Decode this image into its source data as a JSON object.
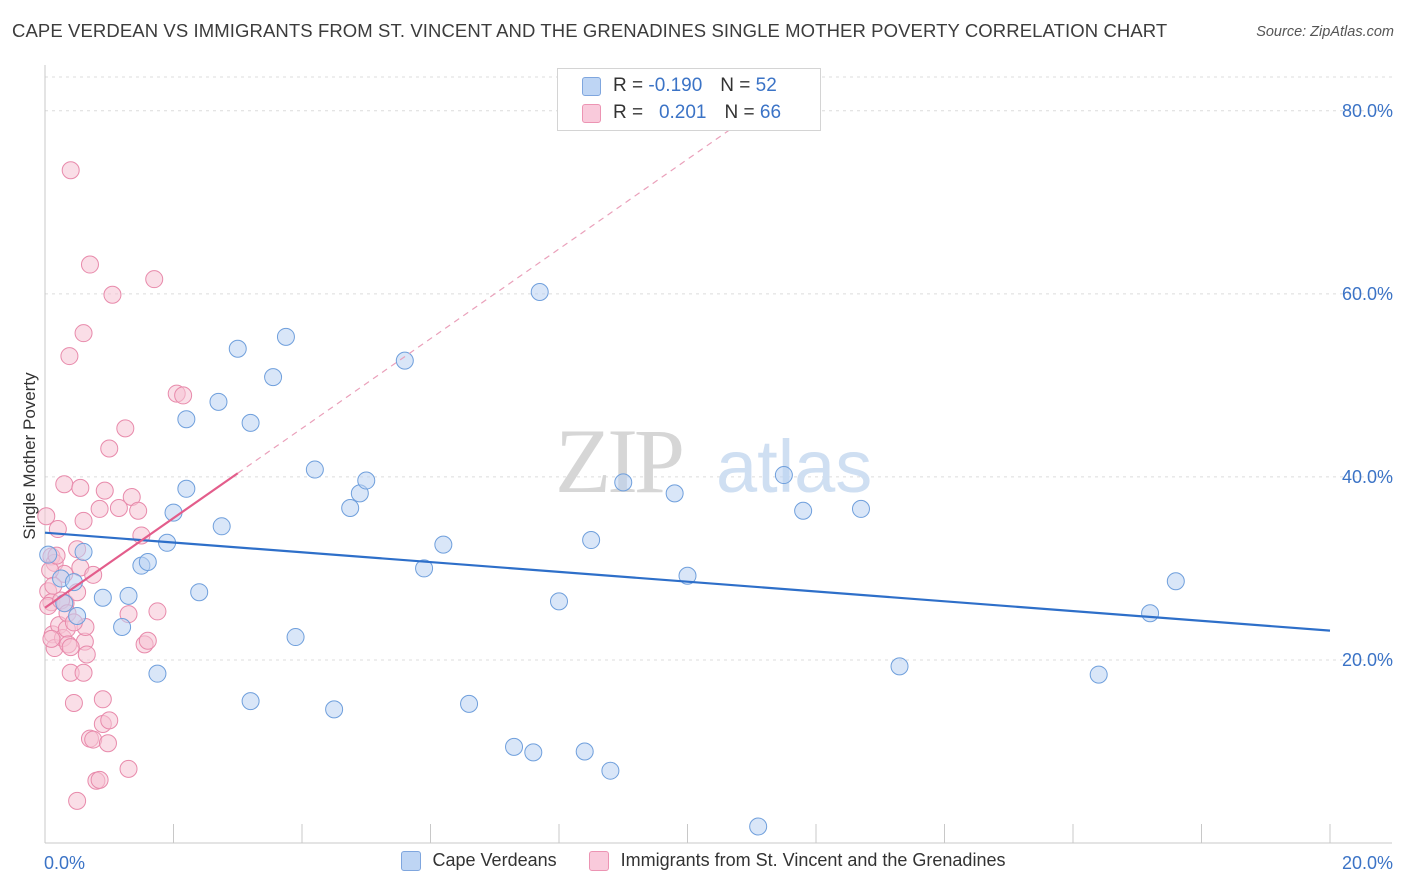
{
  "title": "CAPE VERDEAN VS IMMIGRANTS FROM ST. VINCENT AND THE GRENADINES SINGLE MOTHER POVERTY CORRELATION CHART",
  "source": "Source: ZipAtlas.com",
  "watermark": {
    "zip": "ZIP",
    "atlas": "atlas"
  },
  "legend_top": [
    {
      "r_label": "R =",
      "r_value": "-0.190",
      "n_label": "N =",
      "n_value": "52",
      "color": "#a9c7ef"
    },
    {
      "r_label": "R =",
      "r_value": "0.201",
      "n_label": "N =",
      "n_value": "66",
      "color": "#f6b7cc"
    }
  ],
  "chart_data": {
    "type": "scatter",
    "title": "CAPE VERDEAN VS IMMIGRANTS FROM ST. VINCENT AND THE GRENADINES SINGLE MOTHER POVERTY CORRELATION CHART",
    "xlabel": "",
    "ylabel": "Single Mother Poverty",
    "xlim": [
      0,
      20
    ],
    "ylim": [
      0,
      85
    ],
    "x_tick_labels": [
      {
        "value": 0,
        "label": "0.0%"
      },
      {
        "value": 20,
        "label": "20.0%"
      }
    ],
    "y_tick_labels": [
      {
        "value": 20,
        "label": "20.0%"
      },
      {
        "value": 40,
        "label": "40.0%"
      },
      {
        "value": 60,
        "label": "60.0%"
      },
      {
        "value": 80,
        "label": "80.0%"
      }
    ],
    "x_minor_ticks": [
      0,
      2,
      4,
      6,
      8,
      10,
      12,
      14,
      16,
      18,
      20
    ],
    "grid": "horizontal-dashed",
    "legend_position": "bottom",
    "series": [
      {
        "name": "Cape Verdeans",
        "color": "#a9c7ef",
        "line_color": "#2e6fc9",
        "trend": {
          "x": [
            0,
            20
          ],
          "y": [
            33.9,
            23.2
          ]
        },
        "points": [
          [
            0.05,
            31.5
          ],
          [
            0.25,
            28.9
          ],
          [
            0.3,
            26.2
          ],
          [
            0.45,
            28.5
          ],
          [
            0.6,
            31.8
          ],
          [
            0.5,
            24.8
          ],
          [
            0.9,
            26.8
          ],
          [
            1.3,
            27.0
          ],
          [
            1.2,
            23.6
          ],
          [
            1.5,
            30.3
          ],
          [
            1.6,
            30.7
          ],
          [
            1.75,
            18.5
          ],
          [
            1.9,
            32.8
          ],
          [
            2.0,
            36.1
          ],
          [
            2.2,
            38.7
          ],
          [
            2.2,
            46.3
          ],
          [
            2.4,
            27.4
          ],
          [
            2.7,
            48.2
          ],
          [
            2.75,
            34.6
          ],
          [
            3.0,
            54.0
          ],
          [
            3.2,
            45.9
          ],
          [
            3.2,
            15.5
          ],
          [
            3.55,
            50.9
          ],
          [
            3.75,
            55.3
          ],
          [
            3.9,
            22.5
          ],
          [
            4.2,
            40.8
          ],
          [
            4.5,
            14.6
          ],
          [
            4.75,
            36.6
          ],
          [
            4.9,
            38.2
          ],
          [
            5.0,
            39.6
          ],
          [
            5.6,
            52.7
          ],
          [
            5.9,
            30.0
          ],
          [
            6.2,
            32.6
          ],
          [
            6.6,
            15.2
          ],
          [
            7.3,
            10.5
          ],
          [
            7.6,
            9.9
          ],
          [
            7.7,
            60.2
          ],
          [
            8.0,
            26.4
          ],
          [
            8.4,
            10.0
          ],
          [
            8.5,
            33.1
          ],
          [
            8.8,
            7.9
          ],
          [
            9.0,
            39.4
          ],
          [
            9.8,
            38.2
          ],
          [
            10.0,
            29.2
          ],
          [
            11.1,
            1.8
          ],
          [
            11.5,
            40.2
          ],
          [
            11.8,
            36.3
          ],
          [
            12.7,
            36.5
          ],
          [
            13.3,
            19.3
          ],
          [
            16.4,
            18.4
          ],
          [
            17.2,
            25.1
          ],
          [
            17.6,
            28.6
          ]
        ]
      },
      {
        "name": "Immigrants from St. Vincent and the Grenadines",
        "color": "#f6b7cc",
        "line_color": "#e35d8b",
        "trend": {
          "x": [
            0,
            3.0
          ],
          "y": [
            25.7,
            40.4
          ]
        },
        "trend_extension": {
          "x": [
            3.0,
            11.0
          ],
          "y": [
            40.4,
            79.6
          ]
        },
        "points": [
          [
            0.02,
            35.7
          ],
          [
            0.05,
            27.5
          ],
          [
            0.1,
            31.3
          ],
          [
            0.1,
            26.3
          ],
          [
            0.12,
            22.8
          ],
          [
            0.15,
            21.3
          ],
          [
            0.15,
            30.6
          ],
          [
            0.2,
            34.3
          ],
          [
            0.22,
            23.8
          ],
          [
            0.28,
            22.4
          ],
          [
            0.3,
            29.4
          ],
          [
            0.3,
            39.2
          ],
          [
            0.32,
            26.2
          ],
          [
            0.34,
            23.4
          ],
          [
            0.36,
            21.7
          ],
          [
            0.38,
            53.2
          ],
          [
            0.4,
            18.6
          ],
          [
            0.4,
            73.5
          ],
          [
            0.45,
            15.3
          ],
          [
            0.5,
            27.4
          ],
          [
            0.5,
            32.1
          ],
          [
            0.55,
            38.8
          ],
          [
            0.55,
            30.1
          ],
          [
            0.6,
            18.6
          ],
          [
            0.6,
            35.2
          ],
          [
            0.6,
            55.7
          ],
          [
            0.62,
            22.0
          ],
          [
            0.63,
            23.6
          ],
          [
            0.65,
            20.6
          ],
          [
            0.7,
            11.4
          ],
          [
            0.7,
            63.2
          ],
          [
            0.75,
            29.3
          ],
          [
            0.75,
            11.3
          ],
          [
            0.8,
            6.8
          ],
          [
            0.85,
            6.9
          ],
          [
            0.9,
            13.0
          ],
          [
            0.9,
            15.7
          ],
          [
            0.93,
            38.5
          ],
          [
            0.98,
            10.9
          ],
          [
            1.0,
            43.1
          ],
          [
            1.0,
            13.4
          ],
          [
            1.05,
            59.9
          ],
          [
            1.15,
            36.6
          ],
          [
            1.25,
            45.3
          ],
          [
            1.3,
            8.1
          ],
          [
            1.35,
            37.8
          ],
          [
            1.45,
            36.3
          ],
          [
            1.5,
            33.6
          ],
          [
            1.55,
            21.7
          ],
          [
            1.6,
            22.1
          ],
          [
            1.7,
            61.6
          ],
          [
            1.75,
            25.3
          ],
          [
            2.05,
            49.1
          ],
          [
            2.15,
            48.9
          ],
          [
            0.05,
            25.9
          ],
          [
            0.08,
            29.8
          ],
          [
            0.1,
            22.3
          ],
          [
            0.13,
            28.1
          ],
          [
            0.18,
            31.4
          ],
          [
            0.25,
            26.5
          ],
          [
            0.35,
            25.1
          ],
          [
            0.45,
            24.1
          ],
          [
            0.5,
            4.6
          ],
          [
            1.3,
            25.0
          ],
          [
            0.4,
            21.4
          ],
          [
            0.85,
            36.5
          ]
        ]
      }
    ]
  }
}
